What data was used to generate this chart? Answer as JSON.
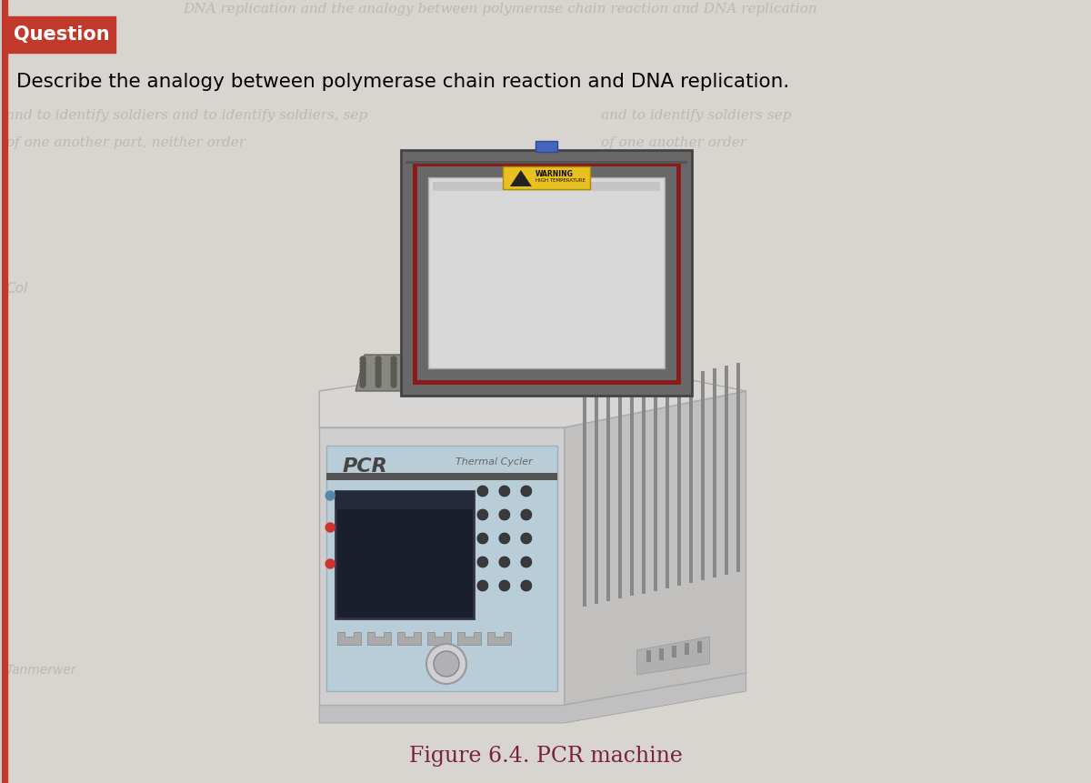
{
  "bg_color": "#cccac6",
  "question_box_color": "#c0392b",
  "question_box_text": "Question",
  "question_text": "Describe the analogy between polymerase chain reaction and DNA replication.",
  "figure_caption": "Figure 6.4. PCR machine",
  "caption_color": "#7a2040",
  "pcr_label": "PCR",
  "thermal_cycler_label": "Thermal Cycler"
}
